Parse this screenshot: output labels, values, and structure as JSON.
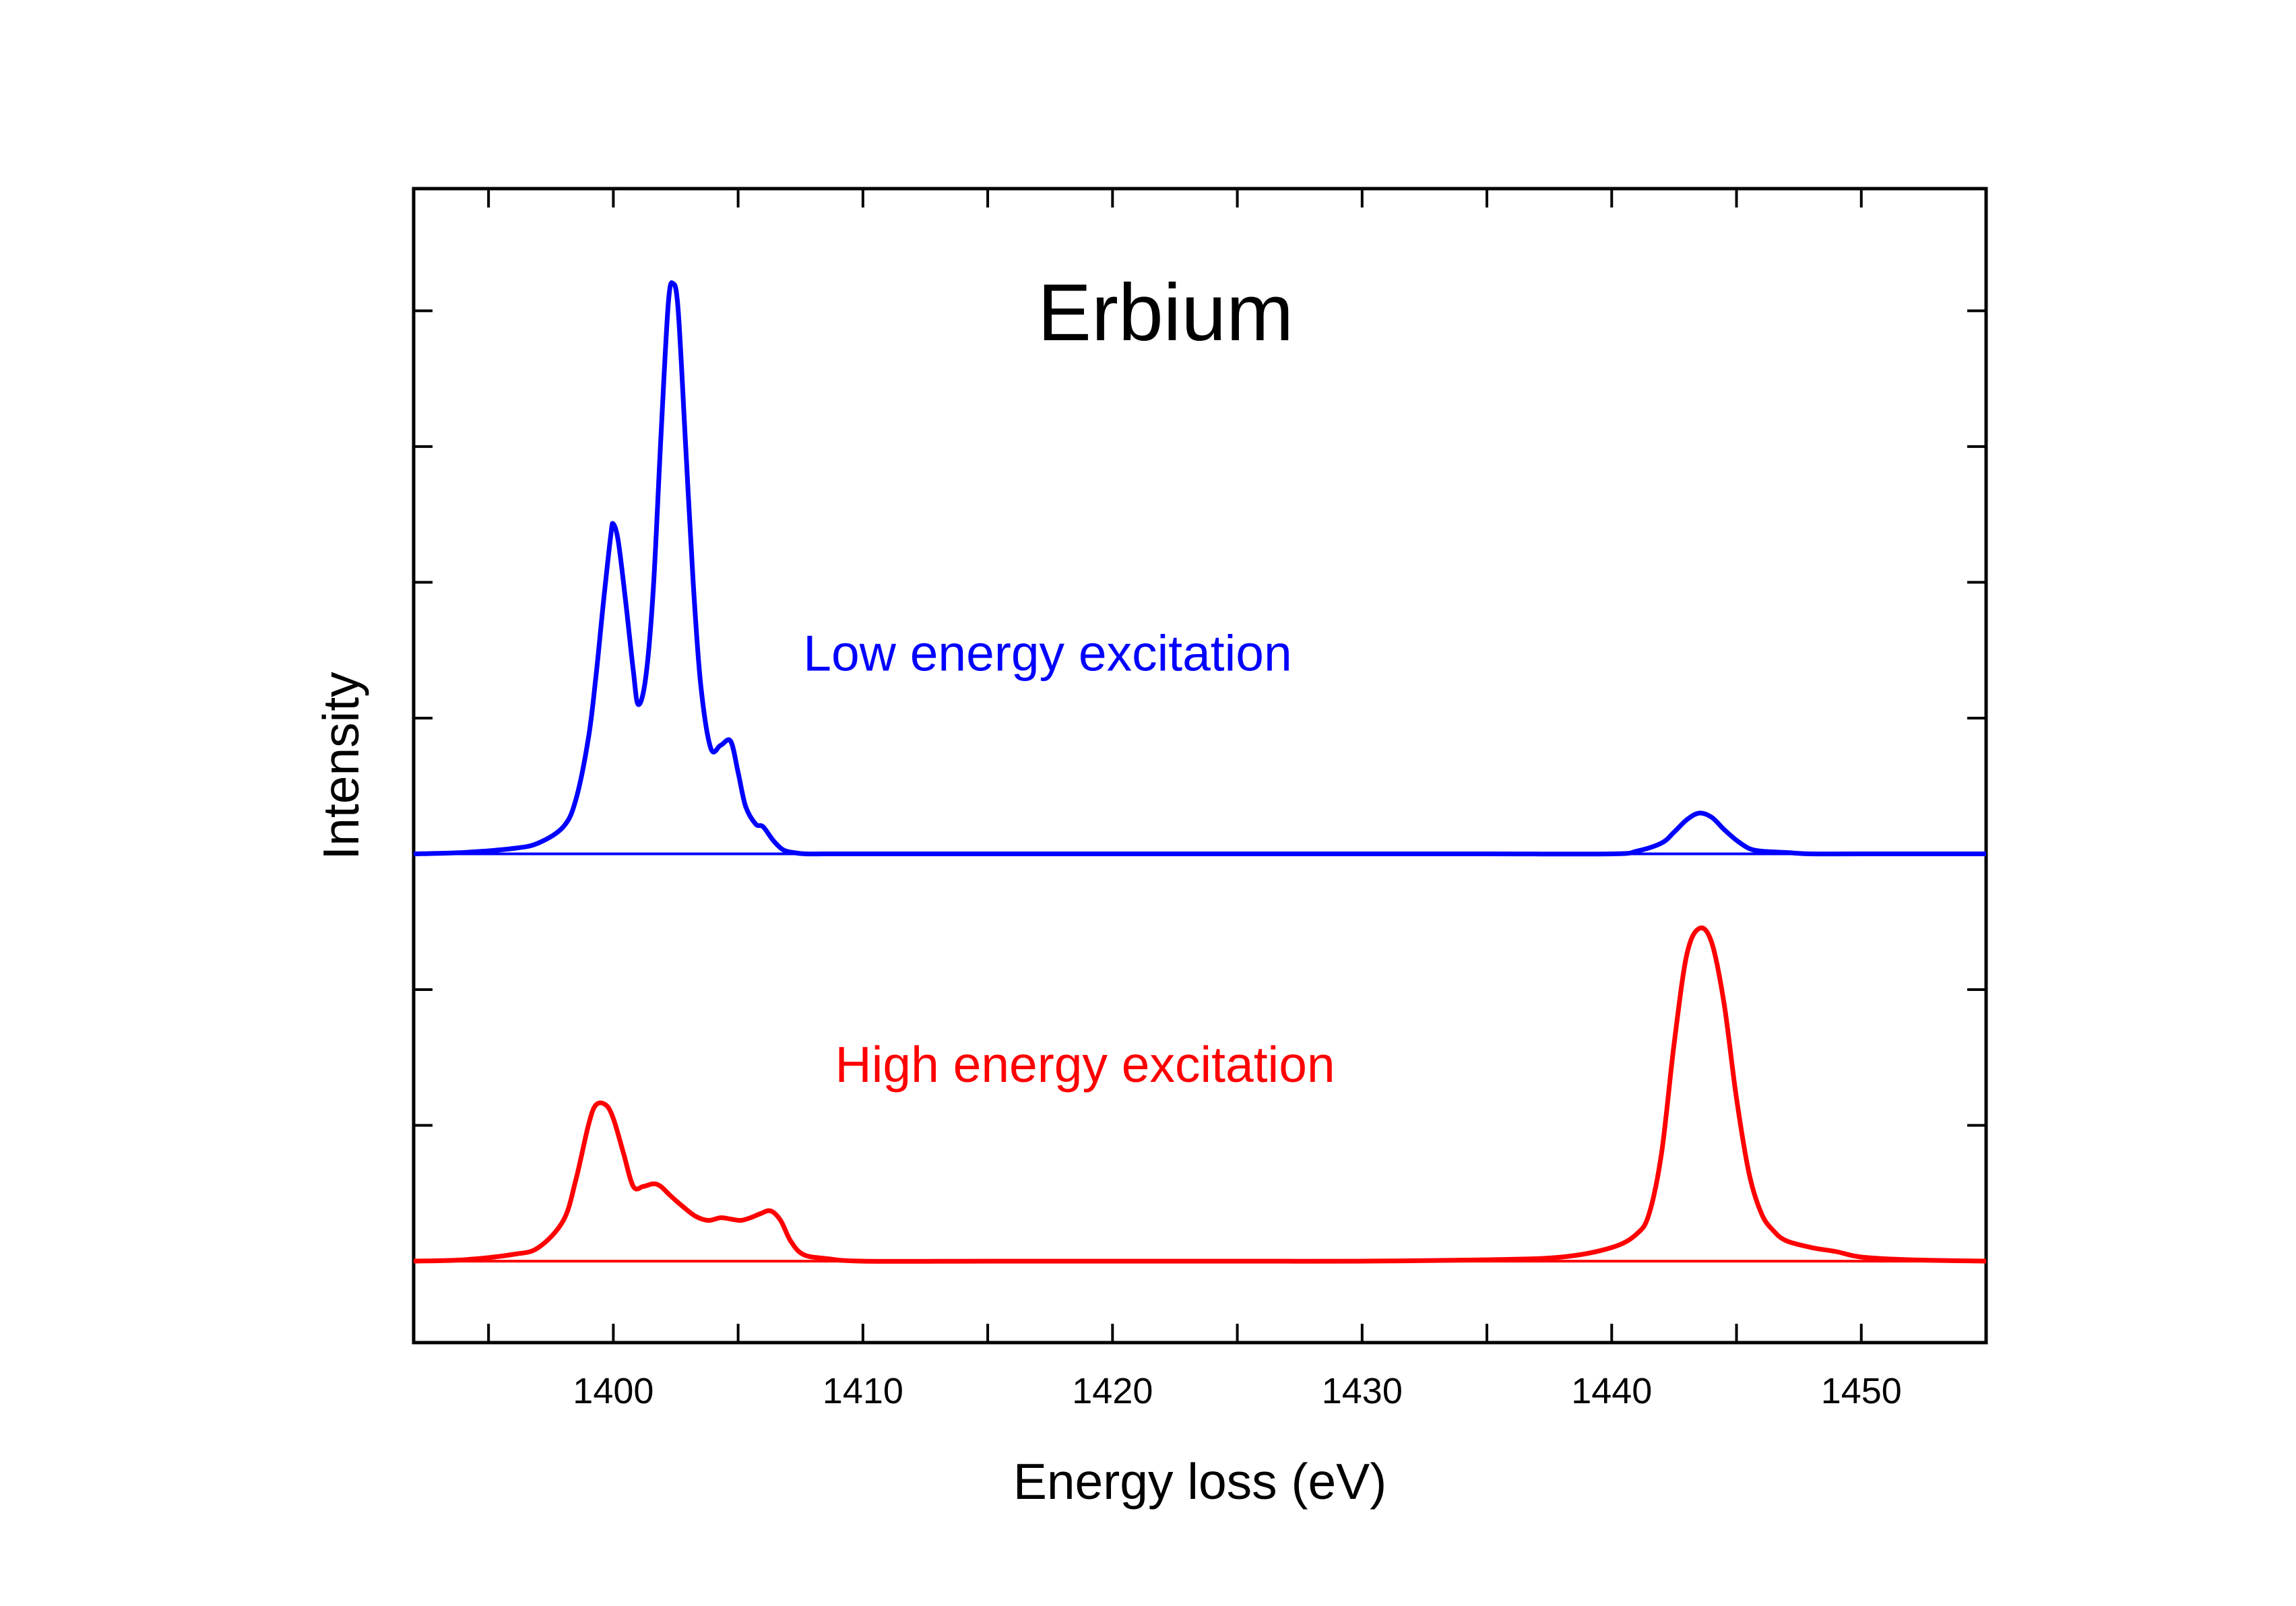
{
  "chart_data": {
    "type": "line",
    "title": "Erbium",
    "xlabel": "Energy loss (eV)",
    "ylabel": "Intensity",
    "xlim": [
      1392,
      1455
    ],
    "ylim": [
      -0.6,
      7.9
    ],
    "x_ticks": [
      1400,
      1410,
      1420,
      1430,
      1440,
      1450
    ],
    "x_minor_step": 5,
    "y_tick_step": 1,
    "y_tick_labels": false,
    "grid": false,
    "legend": "none",
    "annotations": [
      {
        "text": "Low energy excitation",
        "x": 1417.4,
        "y": 4.35,
        "color": "#0000ff"
      },
      {
        "text": "High energy excitation",
        "x": 1418.9,
        "y": 1.32,
        "color": "#ff0000"
      }
    ],
    "series": [
      {
        "name": "",
        "color": "#0000ff",
        "baseline": 3.0,
        "x": [
          1392,
          1394,
          1396,
          1397,
          1398,
          1398.5,
          1399,
          1399.3,
          1399.6,
          1399.9,
          1400.0,
          1400.2,
          1400.5,
          1400.8,
          1401.0,
          1401.3,
          1401.6,
          1401.9,
          1402.2,
          1402.4,
          1402.6,
          1402.9,
          1403.2,
          1403.5,
          1403.9,
          1404.3,
          1404.7,
          1405.0,
          1405.3,
          1405.7,
          1406.0,
          1406.4,
          1406.8,
          1407.2,
          1407.7,
          1408.5,
          1410,
          1415,
          1420,
          1425,
          1430,
          1435,
          1440,
          1441,
          1442,
          1442.5,
          1443,
          1443.5,
          1444,
          1444.5,
          1445,
          1445.5,
          1446,
          1447,
          1448,
          1450,
          1455
        ],
        "y": [
          3.0,
          3.01,
          3.04,
          3.08,
          3.2,
          3.4,
          3.85,
          4.3,
          4.85,
          5.35,
          5.43,
          5.3,
          4.85,
          4.35,
          4.1,
          4.3,
          4.95,
          6.05,
          7.05,
          7.2,
          7.0,
          6.0,
          5.0,
          4.25,
          3.78,
          3.8,
          3.83,
          3.6,
          3.35,
          3.22,
          3.2,
          3.1,
          3.03,
          3.01,
          3.0,
          3.0,
          3.0,
          3.0,
          3.0,
          3.0,
          3.0,
          3.0,
          3.0,
          3.02,
          3.08,
          3.16,
          3.25,
          3.3,
          3.27,
          3.18,
          3.1,
          3.04,
          3.02,
          3.01,
          3.0,
          3.0,
          3.0
        ]
      },
      {
        "name": "",
        "color": "#ff0000",
        "baseline": 0.0,
        "x": [
          1392,
          1394,
          1396,
          1397,
          1398,
          1398.5,
          1399,
          1399.3,
          1399.7,
          1400.0,
          1400.4,
          1400.8,
          1401.2,
          1401.6,
          1401.9,
          1402.3,
          1402.8,
          1403.3,
          1403.8,
          1404.3,
          1404.7,
          1405.1,
          1405.5,
          1405.9,
          1406.3,
          1406.7,
          1407.1,
          1407.6,
          1408.5,
          1410,
          1415,
          1420,
          1425,
          1430,
          1435,
          1438,
          1440,
          1441,
          1441.5,
          1442,
          1442.5,
          1443,
          1443.5,
          1444,
          1444.5,
          1445,
          1445.5,
          1446,
          1446.5,
          1447,
          1448,
          1449,
          1450,
          1452,
          1455
        ],
        "y": [
          0.0,
          0.01,
          0.05,
          0.1,
          0.3,
          0.6,
          1.0,
          1.15,
          1.15,
          1.05,
          0.8,
          0.55,
          0.55,
          0.57,
          0.55,
          0.48,
          0.4,
          0.33,
          0.3,
          0.32,
          0.31,
          0.3,
          0.32,
          0.35,
          0.37,
          0.3,
          0.15,
          0.05,
          0.02,
          0.0,
          0.0,
          0.0,
          0.0,
          0.0,
          0.01,
          0.03,
          0.1,
          0.2,
          0.35,
          0.8,
          1.6,
          2.25,
          2.45,
          2.35,
          1.9,
          1.2,
          0.65,
          0.35,
          0.22,
          0.15,
          0.1,
          0.07,
          0.03,
          0.01,
          0.0
        ]
      }
    ]
  }
}
